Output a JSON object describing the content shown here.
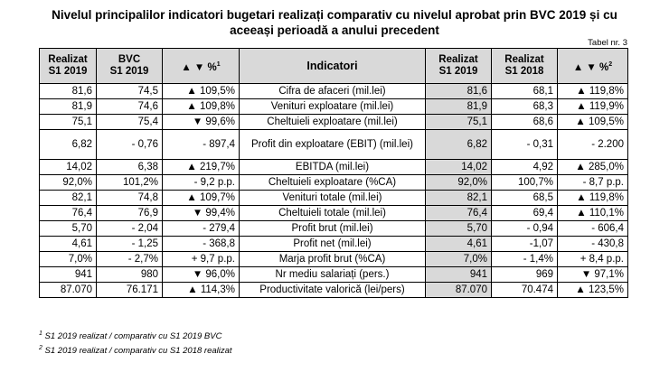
{
  "title_line1": "Nivelul principalilor indicatori bugetari realizați comparativ cu nivelul aprobat prin BVC 2019 și cu",
  "title_line2": "aceeași perioadă a anului precedent",
  "table_number": "Tabel nr. 3",
  "headers": {
    "col1": [
      "Realizat",
      "S1 2019"
    ],
    "col2": [
      "BVC",
      "S1 2019"
    ],
    "col3": "▲ ▼ %",
    "col3_sup": "1",
    "col4": "Indicatori",
    "col5": [
      "Realizat",
      "S1 2019"
    ],
    "col6": [
      "Realizat",
      "S1 2018"
    ],
    "col7": "▲ ▼ %",
    "col7_sup": "2"
  },
  "rows": [
    [
      "81,6",
      "74,5",
      "▲ 109,5%",
      "Cifra de afaceri (mil.lei)",
      "81,6",
      "68,1",
      "▲ 119,8%"
    ],
    [
      "81,9",
      "74,6",
      "▲ 109,8%",
      "Venituri exploatare (mil.lei)",
      "81,9",
      "68,3",
      "▲ 119,9%"
    ],
    [
      "75,1",
      "75,4",
      "▼ 99,6%",
      "Cheltuieli exploatare (mil.lei)",
      "75,1",
      "68,6",
      "▲ 109,5%"
    ],
    [
      "6,82",
      "- 0,76",
      "- 897,4",
      "Profit din exploatare (EBIT) (mil.lei)",
      "6,82",
      "- 0,31",
      "- 2.200"
    ],
    [
      "14,02",
      "6,38",
      "▲ 219,7%",
      "EBITDA (mil.lei)",
      "14,02",
      "4,92",
      "▲ 285,0%"
    ],
    [
      "92,0%",
      "101,2%",
      "- 9,2 p.p.",
      "Cheltuieli exploatare (%CA)",
      "92,0%",
      "100,7%",
      "- 8,7 p.p."
    ],
    [
      "82,1",
      "74,8",
      "▲ 109,7%",
      "Venituri totale (mil.lei)",
      "82,1",
      "68,5",
      "▲ 119,8%"
    ],
    [
      "76,4",
      "76,9",
      "▼ 99,4%",
      "Cheltuieli totale (mil.lei)",
      "76,4",
      "69,4",
      "▲ 110,1%"
    ],
    [
      "5,70",
      "- 2,04",
      "- 279,4",
      "Profit brut (mil.lei)",
      "5,70",
      "- 0,94",
      "- 606,4"
    ],
    [
      "4,61",
      "- 1,25",
      "- 368,8",
      "Profit net (mil.lei)",
      "4,61",
      "-1,07",
      "- 430,8"
    ],
    [
      "7,0%",
      "- 2,7%",
      "+ 9,7 p.p.",
      "Marja profit brut (%CA)",
      "7,0%",
      "- 1,4%",
      "+ 8,4 p.p."
    ],
    [
      "941",
      "980",
      "▼ 96,0%",
      "Nr mediu salariați (pers.)",
      "941",
      "969",
      "▼ 97,1%"
    ],
    [
      "87.070",
      "76.171",
      "▲ 114,3%",
      "Productivitate valorică (lei/pers)",
      "87.070",
      "70.474",
      "▲ 123,5%"
    ]
  ],
  "notes": [
    {
      "sup": "1",
      "text": " S1 2019 realizat / comparativ cu S1 2019 BVC"
    },
    {
      "sup": "2",
      "text": " S1 2019 realizat / comparativ cu S1 2018 realizat"
    }
  ]
}
